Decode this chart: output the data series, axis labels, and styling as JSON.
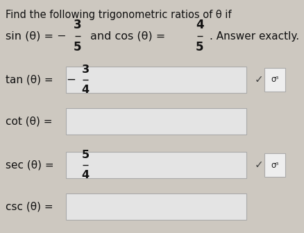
{
  "bg_color": "#cdc8c0",
  "text_color": "#111111",
  "box_fill": "#e4e4e4",
  "box_edge": "#aaaaaa",
  "sigma_box_fill": "#eeeeee",
  "sigma_box_edge": "#aaaaaa",
  "check_color": "#444444",
  "sigma_color": "#222222",
  "title": "Find the following trigonometric ratios of θ if",
  "sin_prefix": "sin (θ) = −",
  "sin_num": "3",
  "sin_den": "5",
  "and_cos_prefix": "and cos (θ) = ",
  "cos_num": "4",
  "cos_den": "5",
  "answer_exactly": ". Answer exactly.",
  "rows": [
    {
      "label": "tan (θ) =",
      "has_content": true,
      "sign": "−",
      "num": "3",
      "den": "4",
      "has_check": true
    },
    {
      "label": "cot (θ) =",
      "has_content": false,
      "sign": "",
      "num": "",
      "den": "",
      "has_check": false
    },
    {
      "label": "sec (θ) =",
      "has_content": true,
      "sign": "",
      "num": "5",
      "den": "4",
      "has_check": true
    },
    {
      "label": "csc (θ) =",
      "has_content": false,
      "sign": "",
      "num": "",
      "den": "",
      "has_check": false
    }
  ]
}
